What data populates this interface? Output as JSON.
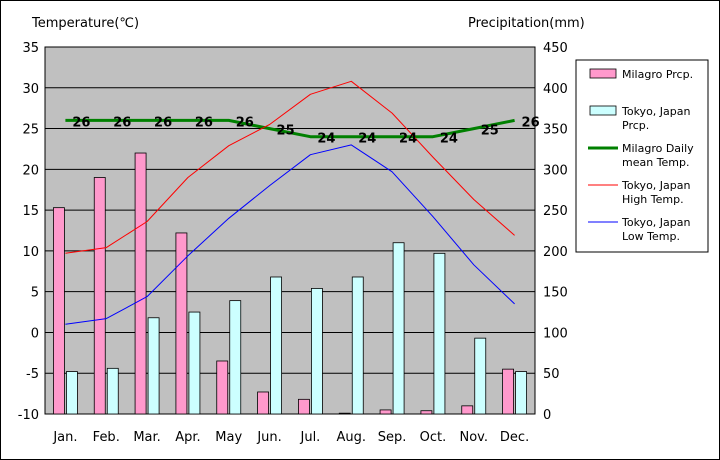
{
  "chart_data": {
    "type": "bar",
    "categories": [
      "Jan.",
      "Feb.",
      "Mar.",
      "Apr.",
      "May",
      "Jun.",
      "Jul.",
      "Aug.",
      "Sep.",
      "Oct.",
      "Nov.",
      "Dec."
    ],
    "ylabel_left": "Temperature(℃)",
    "ylabel_right": "Precipitation(mm)",
    "ylim_left": [
      -10,
      35
    ],
    "ylim_right": [
      0,
      450
    ],
    "left_ticks": [
      "35",
      "30",
      "25",
      "20",
      "15",
      "10",
      "5",
      "0",
      "-5",
      "-10"
    ],
    "right_ticks": [
      "450",
      "400",
      "350",
      "300",
      "250",
      "200",
      "150",
      "100",
      "50",
      "0"
    ],
    "grid": true,
    "legend_position": "right",
    "series": [
      {
        "name": "Milagro Prcp.",
        "kind": "bar",
        "axis": "right",
        "color": "#ff99cc",
        "values": [
          253,
          290,
          320,
          222,
          65,
          27,
          18,
          1,
          5,
          4,
          10,
          55
        ]
      },
      {
        "name": "Tokyo, Japan Prcp.",
        "kind": "bar",
        "axis": "right",
        "color": "#ccffff",
        "values": [
          52,
          56,
          118,
          125,
          139,
          168,
          154,
          168,
          210,
          197,
          93,
          52
        ]
      },
      {
        "name": "Milagro Daily mean Temp.",
        "kind": "line",
        "axis": "left",
        "color": "#008000",
        "values": [
          26,
          26,
          26,
          26,
          26,
          25,
          24,
          24,
          24,
          24,
          25,
          26
        ],
        "labels": [
          "26",
          "26",
          "26",
          "26",
          "26",
          "25",
          "24",
          "24",
          "24",
          "24",
          "25",
          "26"
        ]
      },
      {
        "name": "Tokyo, Japan High Temp.",
        "kind": "line",
        "axis": "left",
        "color": "#ff0000",
        "values": [
          9.7,
          10.4,
          13.6,
          19.0,
          22.9,
          25.5,
          29.2,
          30.8,
          26.9,
          21.5,
          16.3,
          11.9
        ]
      },
      {
        "name": "Tokyo, Japan Low Temp.",
        "kind": "line",
        "axis": "left",
        "color": "#0000ff",
        "values": [
          1.0,
          1.7,
          4.4,
          9.4,
          14.0,
          18.0,
          21.8,
          23.0,
          19.7,
          14.2,
          8.3,
          3.5
        ]
      }
    ],
    "legend": [
      {
        "lines": [
          "Milagro Prcp."
        ],
        "swatch": "box",
        "color": "#ff99cc"
      },
      {
        "lines": [
          "Tokyo, Japan",
          "Prcp."
        ],
        "swatch": "box",
        "color": "#ccffff"
      },
      {
        "lines": [
          "Milagro Daily",
          "mean Temp."
        ],
        "swatch": "thick-line",
        "color": "#008000"
      },
      {
        "lines": [
          "Tokyo, Japan",
          "High Temp."
        ],
        "swatch": "line",
        "color": "#ff0000"
      },
      {
        "lines": [
          "Tokyo, Japan",
          "Low Temp."
        ],
        "swatch": "line",
        "color": "#0000ff"
      }
    ],
    "colors": {
      "plot_background": "#c0c0c0",
      "grid": "#000000"
    }
  }
}
